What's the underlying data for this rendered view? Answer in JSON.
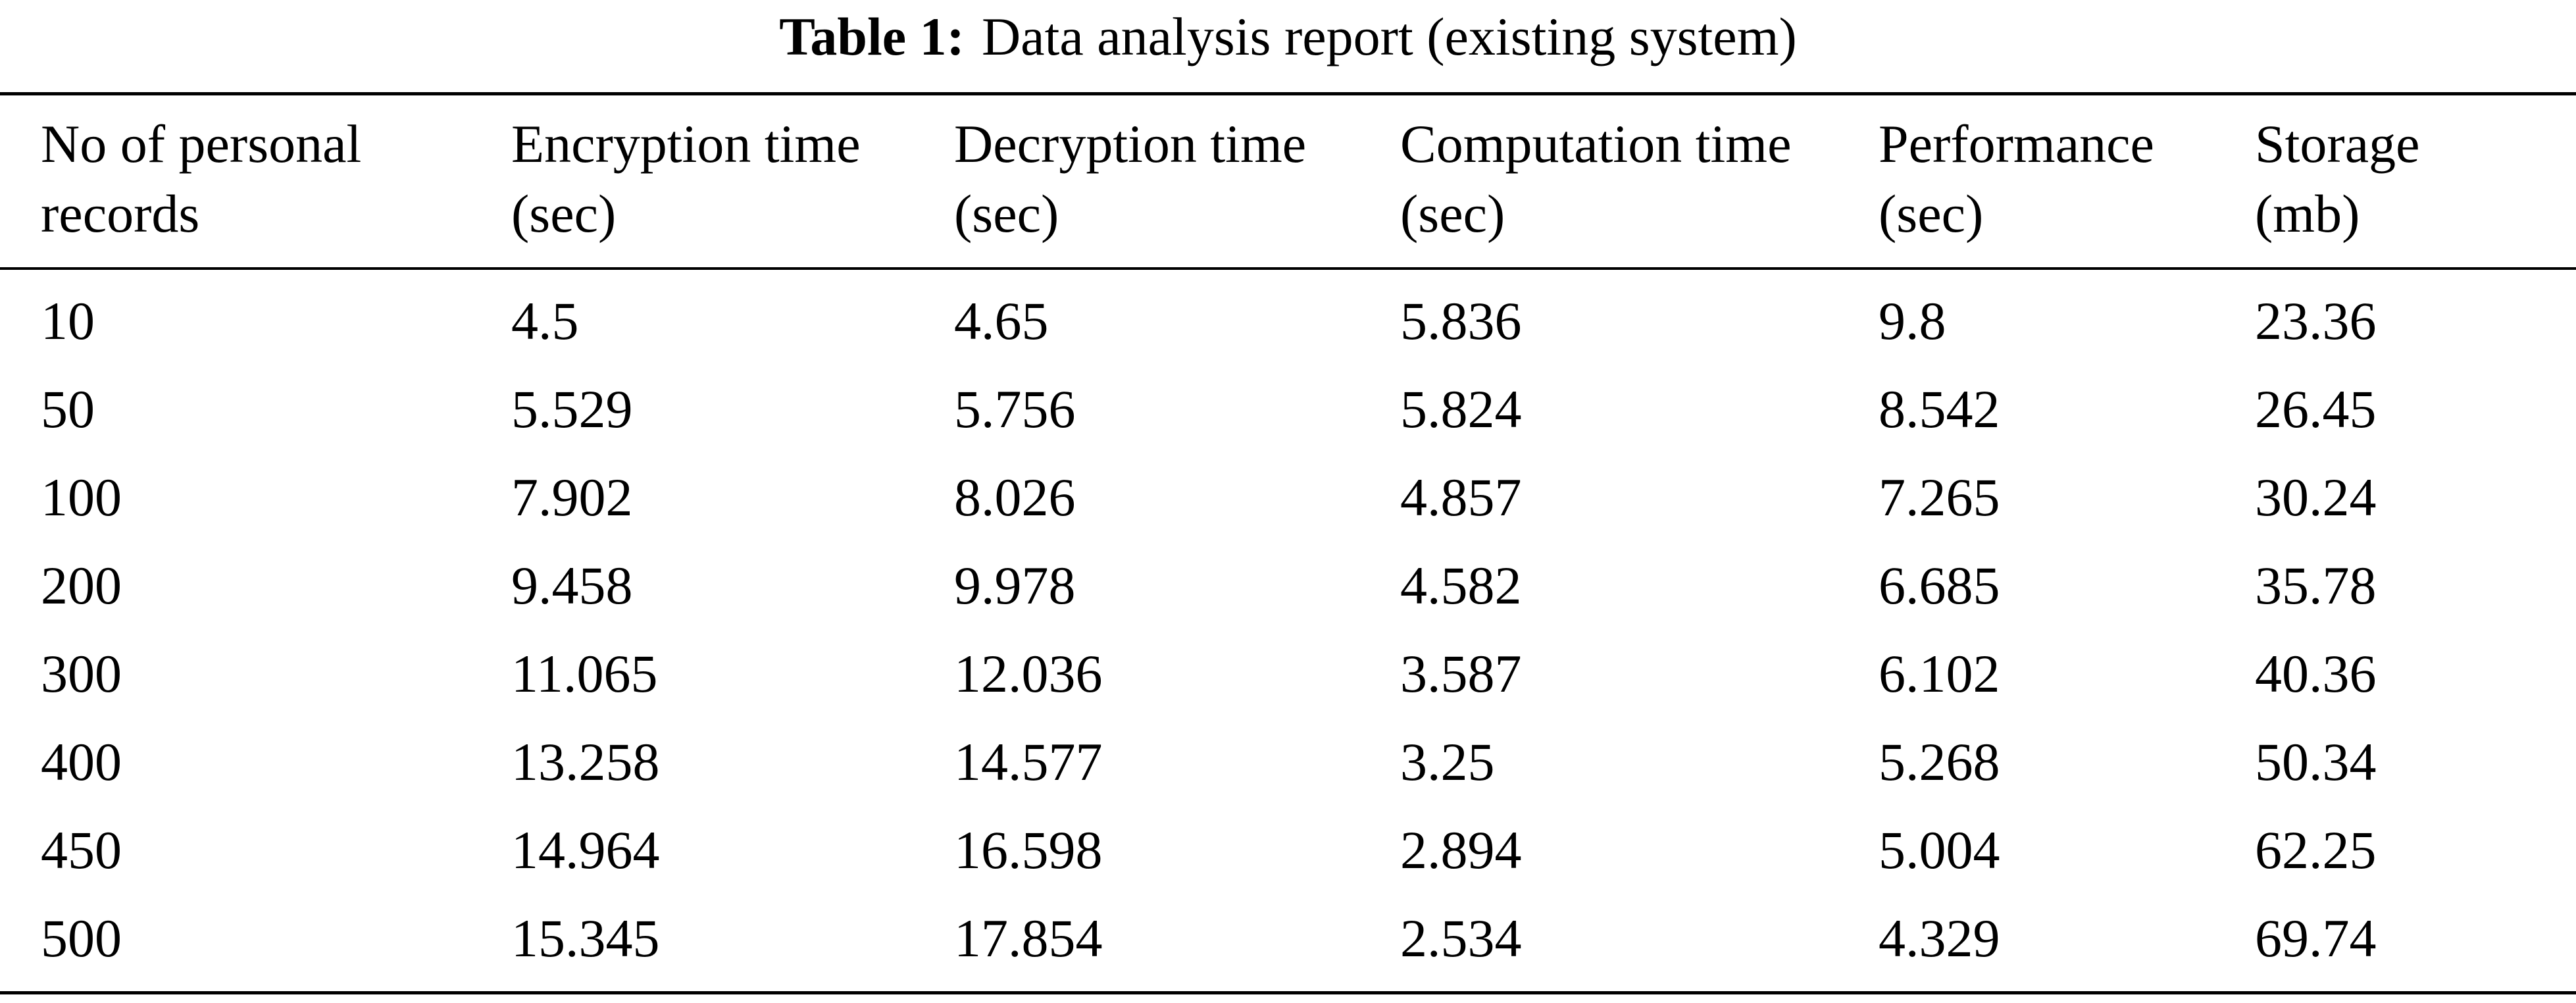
{
  "caption": {
    "label": "Table 1:",
    "text": "Data analysis report (existing system)"
  },
  "table": {
    "columns": [
      {
        "line1": "No of personal",
        "line2": "records"
      },
      {
        "line1": "Encryption time",
        "line2": "(sec)"
      },
      {
        "line1": "Decryption time",
        "line2": "(sec)"
      },
      {
        "line1": "Computation time",
        "line2": "(sec)"
      },
      {
        "line1": "Performance",
        "line2": "(sec)"
      },
      {
        "line1": "Storage",
        "line2": "(mb)"
      }
    ],
    "rows": [
      [
        "10",
        "4.5",
        "4.65",
        "5.836",
        "9.8",
        "23.36"
      ],
      [
        "50",
        "5.529",
        "5.756",
        "5.824",
        "8.542",
        "26.45"
      ],
      [
        "100",
        "7.902",
        "8.026",
        "4.857",
        "7.265",
        "30.24"
      ],
      [
        "200",
        "9.458",
        "9.978",
        "4.582",
        "6.685",
        "35.78"
      ],
      [
        "300",
        "11.065",
        "12.036",
        "3.587",
        "6.102",
        "40.36"
      ],
      [
        "400",
        "13.258",
        "14.577",
        "3.25",
        "5.268",
        "50.34"
      ],
      [
        "450",
        "14.964",
        "16.598",
        "2.894",
        "5.004",
        "62.25"
      ],
      [
        "500",
        "15.345",
        "17.854",
        "2.534",
        "4.329",
        "69.74"
      ]
    ]
  }
}
